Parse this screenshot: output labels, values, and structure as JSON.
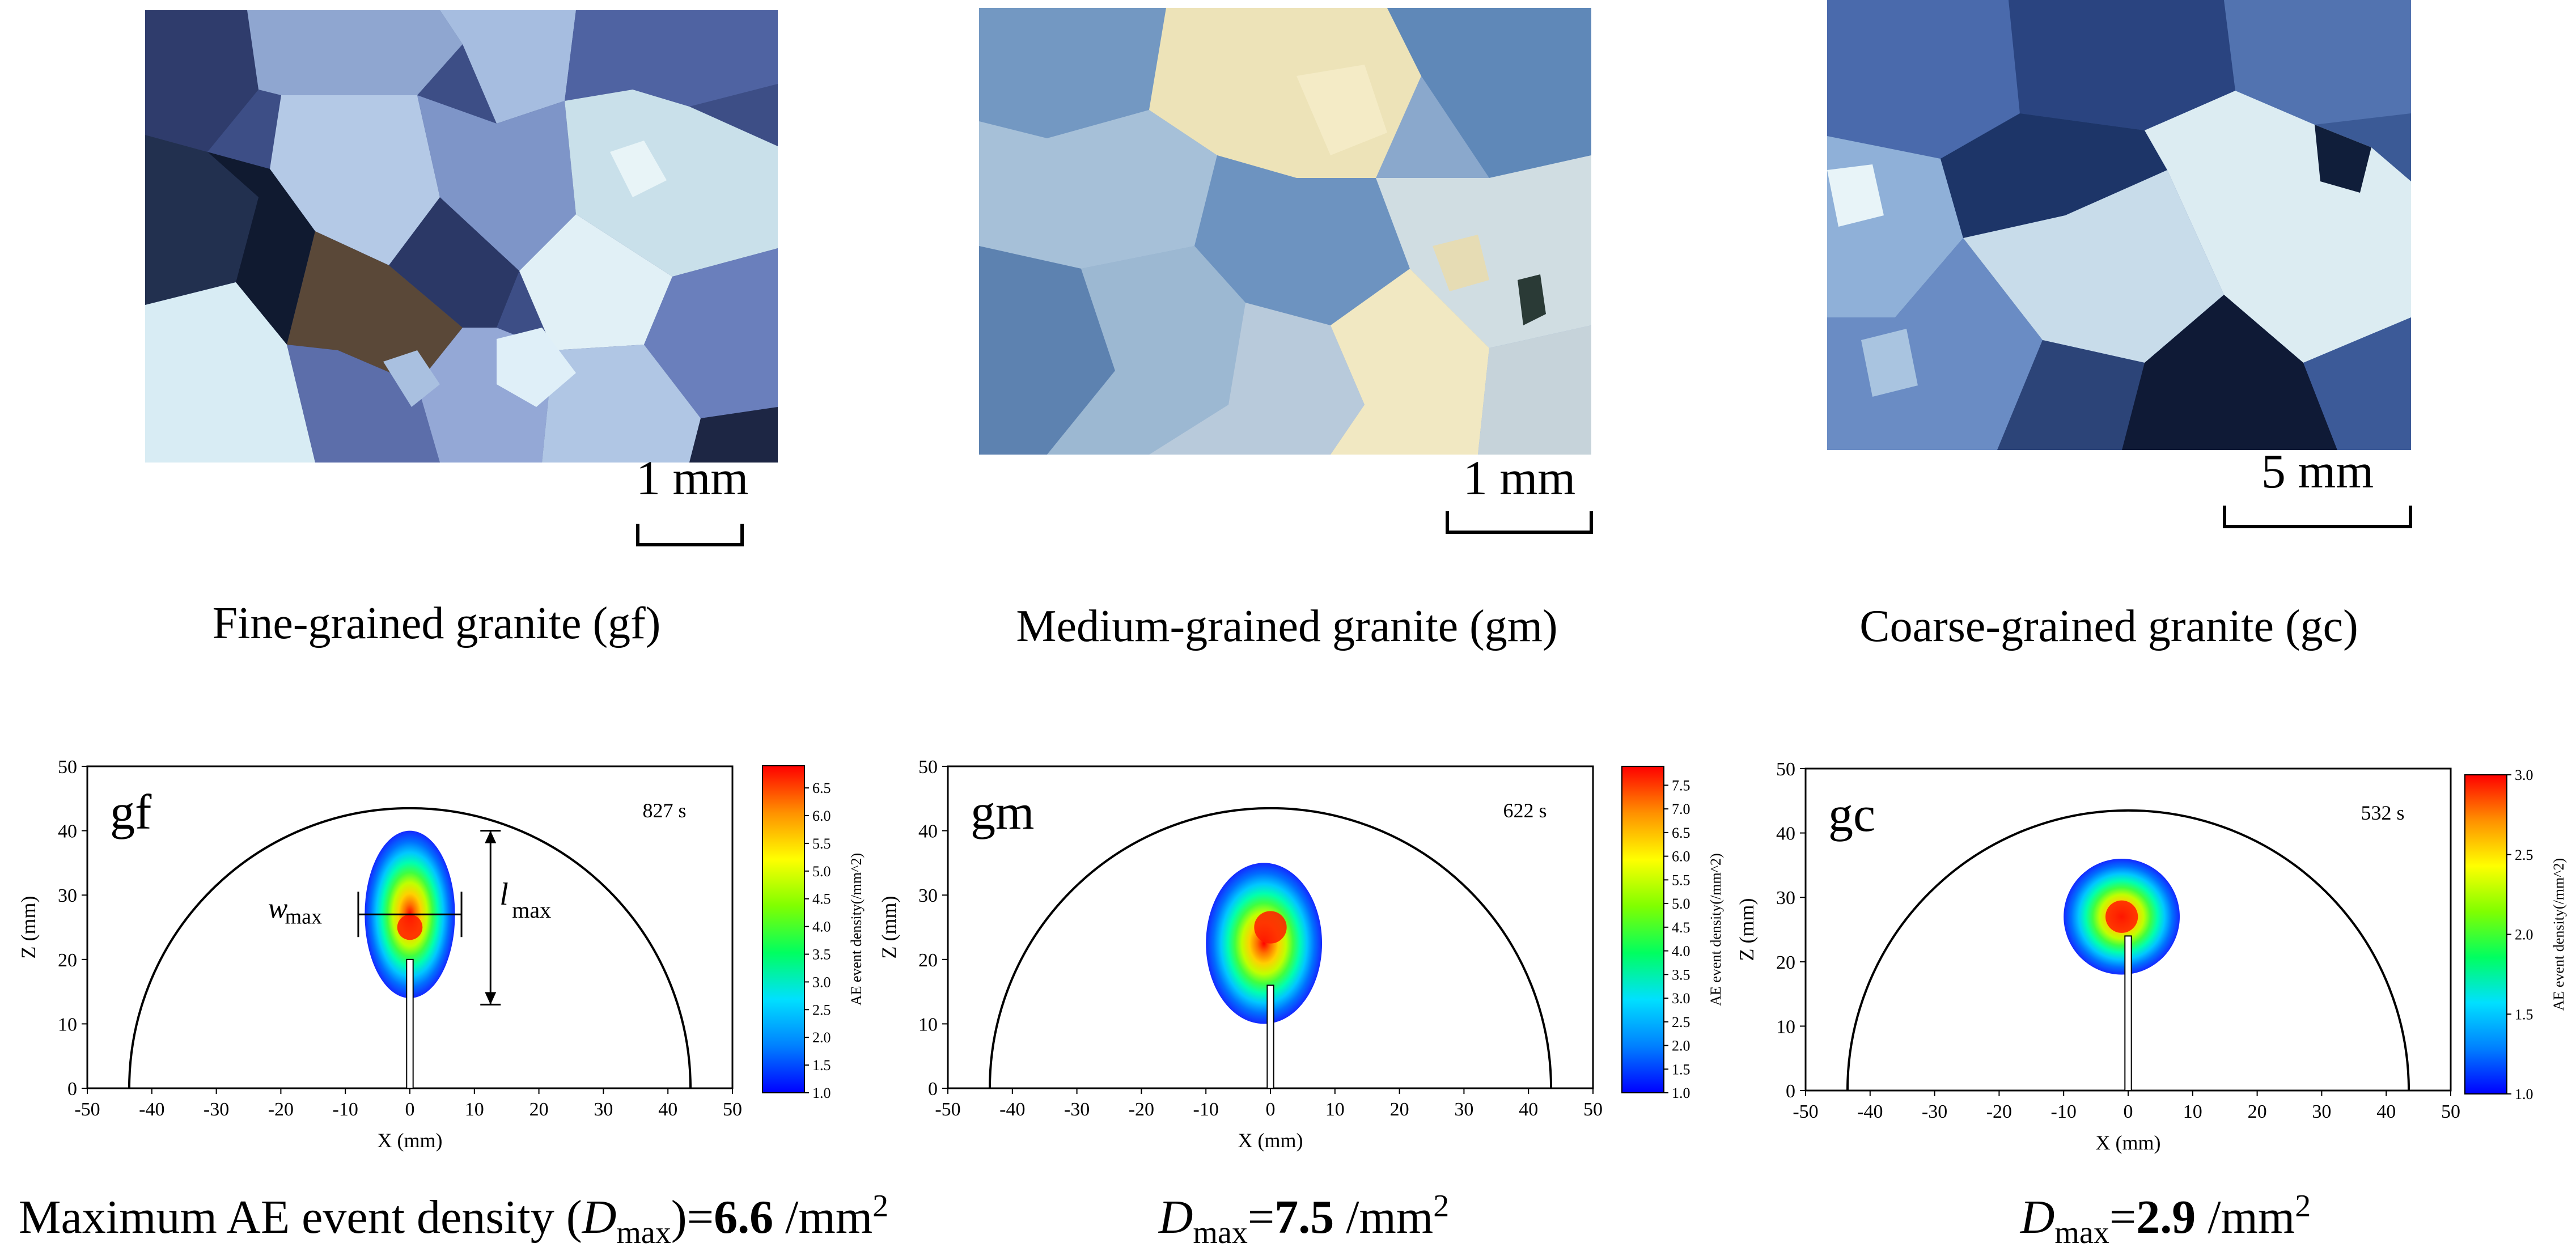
{
  "micrographs": [
    {
      "scale": "1 mm",
      "caption": "Fine-grained granite (gf)"
    },
    {
      "scale": "1 mm",
      "caption": "Medium-grained granite (gm)"
    },
    {
      "scale": "5 mm",
      "caption": "Coarse-grained granite (gc)"
    }
  ],
  "chart_data": [
    {
      "type": "heatmap",
      "panel_label": "gf",
      "time": "827 s",
      "xlabel": "X (mm)",
      "ylabel": "Z (mm)",
      "xlim": [
        -50,
        50
      ],
      "ylim": [
        0,
        50
      ],
      "xticks": [
        "-50",
        "-40",
        "-30",
        "-20",
        "-10",
        "0",
        "10",
        "20",
        "30",
        "40",
        "50"
      ],
      "yticks": [
        "0",
        "10",
        "20",
        "30",
        "40",
        "50"
      ],
      "colorbar_label": "AE event density(/mm^2)",
      "colorbar_ticks": [
        "1.0",
        "1.5",
        "2.0",
        "2.5",
        "3.0",
        "3.5",
        "4.0",
        "4.5",
        "5.0",
        "5.5",
        "6.0",
        "6.5"
      ],
      "colorbar_range": [
        1.0,
        6.9
      ],
      "boundary_radius": 43.5,
      "cloud_center": [
        0,
        25
      ],
      "cloud_extent_x": [
        -7,
        7
      ],
      "cloud_extent_z": [
        14,
        40
      ],
      "annotations": {
        "w": "w",
        "w_sub": "max",
        "l": "l",
        "l_sub": "max"
      }
    },
    {
      "type": "heatmap",
      "panel_label": "gm",
      "time": "622 s",
      "xlabel": "X (mm)",
      "ylabel": "Z (mm)",
      "xlim": [
        -50,
        50
      ],
      "ylim": [
        0,
        50
      ],
      "xticks": [
        "-50",
        "-40",
        "-30",
        "-20",
        "-10",
        "0",
        "10",
        "20",
        "30",
        "40",
        "50"
      ],
      "yticks": [
        "0",
        "10",
        "20",
        "30",
        "40",
        "50"
      ],
      "colorbar_label": "AE event density(/mm^2)",
      "colorbar_ticks": [
        "1.0",
        "1.5",
        "2.0",
        "2.5",
        "3.0",
        "3.5",
        "4.0",
        "4.5",
        "5.0",
        "5.5",
        "6.0",
        "6.5",
        "7.0",
        "7.5"
      ],
      "colorbar_range": [
        1.0,
        7.9
      ],
      "boundary_radius": 43.5,
      "cloud_center": [
        0,
        25
      ],
      "cloud_extent_x": [
        -10,
        8
      ],
      "cloud_extent_z": [
        10,
        35
      ],
      "annotations": null
    },
    {
      "type": "heatmap",
      "panel_label": "gc",
      "time": "532 s",
      "xlabel": "X (mm)",
      "ylabel": "Z (mm)",
      "xlim": [
        -50,
        50
      ],
      "ylim": [
        0,
        50
      ],
      "xticks": [
        "-50",
        "-40",
        "-30",
        "-20",
        "-10",
        "0",
        "10",
        "20",
        "30",
        "40",
        "50"
      ],
      "yticks": [
        "0",
        "10",
        "20",
        "30",
        "40",
        "50"
      ],
      "colorbar_label": "AE event density(/mm^2)",
      "colorbar_ticks": [
        "1.0",
        "1.5",
        "2.0",
        "2.5",
        "3.0"
      ],
      "colorbar_range": [
        1.0,
        3.0
      ],
      "boundary_radius": 43.5,
      "cloud_center": [
        -1,
        27
      ],
      "cloud_extent_x": [
        -10,
        8
      ],
      "cloud_extent_z": [
        18,
        36
      ],
      "annotations": null
    }
  ],
  "dmax": [
    {
      "prefix": "Maximum AE event density (",
      "symbol": "D",
      "sub": "max",
      "mid": ")=",
      "value": "6.6",
      "unit": " /mm",
      "sup": "2"
    },
    {
      "prefix": "",
      "symbol": "D",
      "sub": "max",
      "mid": "=",
      "value": "7.5",
      "unit": " /mm",
      "sup": "2"
    },
    {
      "prefix": "",
      "symbol": "D",
      "sub": "max",
      "mid": "=",
      "value": "2.9",
      "unit": " /mm",
      "sup": "2"
    }
  ],
  "colors": {
    "colormap": [
      "#0000ff",
      "#0080ff",
      "#00e0ff",
      "#00ff60",
      "#80ff00",
      "#ffff00",
      "#ff9000",
      "#ff0000"
    ],
    "fine_grains": [
      "#1c2748",
      "#7f94c8",
      "#a7bee0",
      "#c9dcea",
      "#4e5f98",
      "#dfeff5",
      "#2e3f72",
      "#94a8d6"
    ],
    "medium_grains": [
      "#7aa0c6",
      "#ece2b6",
      "#9cb8d4",
      "#5f86b4",
      "#c7d6de",
      "#f3e8c0",
      "#88a6c8",
      "#b4c8dc"
    ],
    "coarse_grains": [
      "#3a5c98",
      "#5877b4",
      "#cfe3ec",
      "#253f78",
      "#e4f0f4",
      "#6c8cc0",
      "#101a34",
      "#a9c2dc"
    ]
  }
}
